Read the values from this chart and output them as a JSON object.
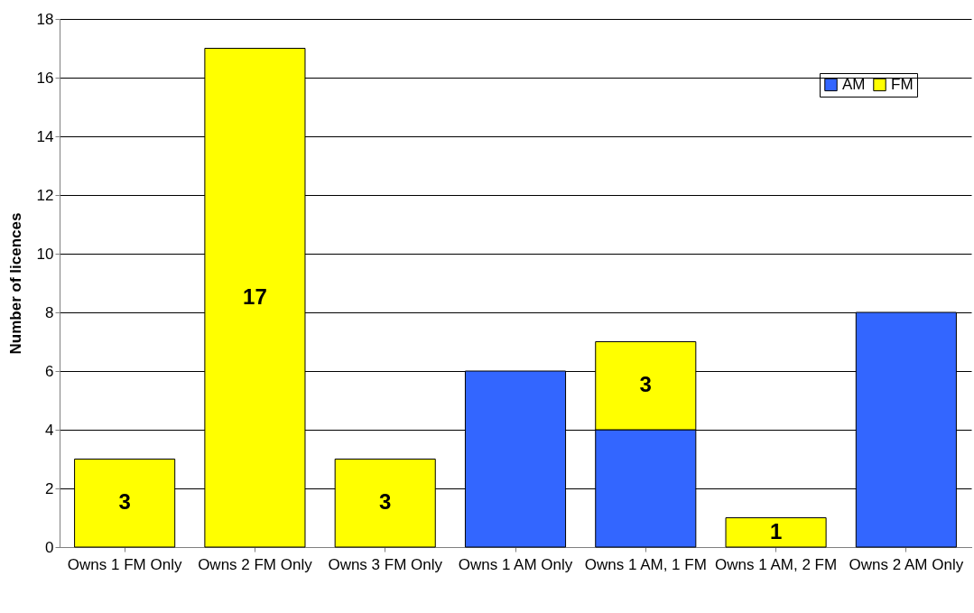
{
  "chart_data": {
    "type": "bar",
    "stacked": true,
    "ylabel": "Number of licences",
    "categories": [
      "Owns 1 FM Only",
      "Owns 2 FM Only",
      "Owns 3 FM Only",
      "Owns 1 AM Only",
      "Owns 1 AM, 1 FM",
      "Owns 1 AM, 2 FM",
      "Owns 2 AM Only"
    ],
    "series": [
      {
        "name": "AM",
        "color": "#3366ff",
        "values": [
          0,
          0,
          0,
          6,
          4,
          0,
          8
        ]
      },
      {
        "name": "FM",
        "color": "#ffff00",
        "values": [
          3,
          17,
          3,
          0,
          3,
          1,
          0
        ],
        "value_labels": [
          "3",
          "17",
          "3",
          null,
          "3",
          "1",
          null
        ]
      }
    ],
    "ylim": [
      0,
      18
    ],
    "yticks": [
      0,
      2,
      4,
      6,
      8,
      10,
      12,
      14,
      16,
      18
    ],
    "grid": "y",
    "legend": "top right"
  }
}
